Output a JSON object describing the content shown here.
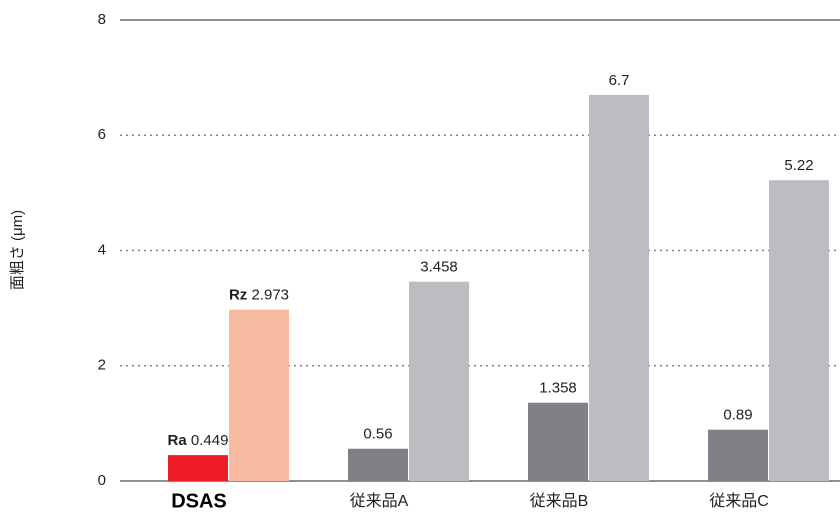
{
  "chart_data": {
    "type": "bar",
    "y_label": "面粗さ (μm)",
    "categories": [
      "DSAS",
      "従来品A",
      "従来品B",
      "従来品C"
    ],
    "series": [
      {
        "name": "Ra",
        "values": [
          0.449,
          0.56,
          1.358,
          0.89
        ],
        "colors": [
          "#ee1c25",
          "#808185",
          "#808185",
          "#808185"
        ]
      },
      {
        "name": "Rz",
        "values": [
          2.973,
          3.458,
          6.7,
          5.22
        ],
        "colors": [
          "#f8bba1",
          "#bcbdc1",
          "#bcbdc1",
          "#bcbdc1"
        ]
      }
    ],
    "ylim": [
      0,
      8
    ],
    "yticks": [
      0,
      2,
      4,
      6,
      8
    ],
    "grid": true
  }
}
